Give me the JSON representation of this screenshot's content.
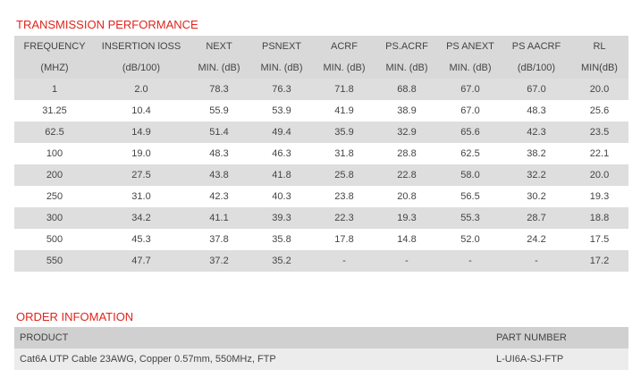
{
  "transmission": {
    "title": "TRANSMISSION PERFORMANCE",
    "header1": [
      "FREQUENCY",
      "INSERTION lOSS",
      "NEXT",
      "PSNEXT",
      "ACRF",
      "PS.ACRF",
      "PS ANEXT",
      "PS AACRF",
      "RL"
    ],
    "header2": [
      "(MHZ)",
      "(dB/100)",
      "MIN. (dB)",
      "MIN. (dB)",
      "MIN. (dB)",
      "MIN. (dB)",
      "MIN. (dB)",
      "(dB/100)",
      "MIN(dB)"
    ],
    "rows": [
      [
        "1",
        "2.0",
        "78.3",
        "76.3",
        "71.8",
        "68.8",
        "67.0",
        "67.0",
        "20.0"
      ],
      [
        "31.25",
        "10.4",
        "55.9",
        "53.9",
        "41.9",
        "38.9",
        "67.0",
        "48.3",
        "25.6"
      ],
      [
        "62.5",
        "14.9",
        "51.4",
        "49.4",
        "35.9",
        "32.9",
        "65.6",
        "42.3",
        "23.5"
      ],
      [
        "100",
        "19.0",
        "48.3",
        "46.3",
        "31.8",
        "28.8",
        "62.5",
        "38.2",
        "22.1"
      ],
      [
        "200",
        "27.5",
        "43.8",
        "41.8",
        "25.8",
        "22.8",
        "58.0",
        "32.2",
        "20.0"
      ],
      [
        "250",
        "31.0",
        "42.3",
        "40.3",
        "23.8",
        "20.8",
        "56.5",
        "30.2",
        "19.3"
      ],
      [
        "300",
        "34.2",
        "41.1",
        "39.3",
        "22.3",
        "19.3",
        "55.3",
        "28.7",
        "18.8"
      ],
      [
        "500",
        "45.3",
        "37.8",
        "35.8",
        "17.8",
        "14.8",
        "52.0",
        "24.2",
        "17.5"
      ],
      [
        "550",
        "47.7",
        "37.2",
        "35.2",
        "-",
        "-",
        "-",
        "-",
        "17.2"
      ]
    ]
  },
  "order": {
    "title": "ORDER INFOMATION",
    "header": [
      "PRODUCT",
      "PART NUMBER"
    ],
    "rows": [
      [
        "Cat6A UTP Cable 23AWG, Copper 0.57mm, 550MHz, FTP",
        "L-UI6A-SJ-FTP"
      ]
    ]
  }
}
